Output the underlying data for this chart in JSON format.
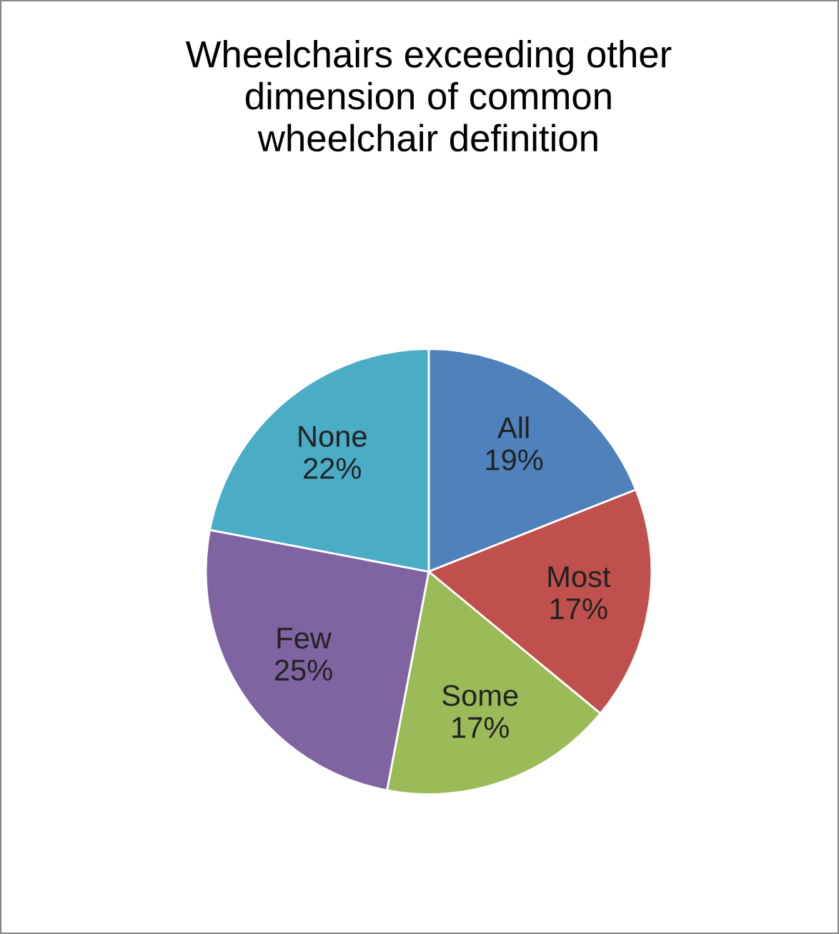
{
  "chart_data": {
    "type": "pie",
    "title": "Wheelchairs exceeding other\ndimension of common\nwheelchair definition",
    "categories": [
      "All",
      "Most",
      "Some",
      "Few",
      "None"
    ],
    "values": [
      19,
      17,
      17,
      25,
      22
    ],
    "value_labels": [
      "19%",
      "17%",
      "17%",
      "25%",
      "22%"
    ],
    "colors": [
      "#4f81bd",
      "#c0504d",
      "#9bbb59",
      "#8064a2",
      "#4bacc6"
    ],
    "legend": false
  }
}
